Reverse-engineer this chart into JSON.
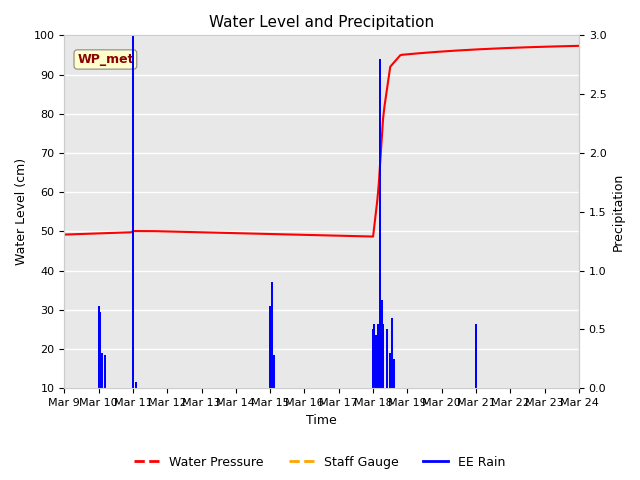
{
  "title": "Water Level and Precipitation",
  "xlabel": "Time",
  "ylabel_left": "Water Level (cm)",
  "ylabel_right": "Precipitation",
  "ylim_left": [
    10,
    100
  ],
  "ylim_right": [
    0.0,
    3.0
  ],
  "yticks_left": [
    10,
    20,
    30,
    40,
    50,
    60,
    70,
    80,
    90,
    100
  ],
  "yticks_right": [
    0.0,
    0.5,
    1.0,
    1.5,
    2.0,
    2.5,
    3.0
  ],
  "background_color": "#e8e8e8",
  "grid_color": "#ffffff",
  "annotation_text": "WP_met",
  "annotation_color": "#8b0000",
  "annotation_bg": "#ffffcc",
  "wp_color": "red",
  "rain_color": "blue",
  "staff_color": "orange",
  "legend_labels": [
    "Water Pressure",
    "Staff Gauge",
    "EE Rain"
  ],
  "title_fontsize": 11,
  "axis_fontsize": 9,
  "tick_fontsize": 8
}
